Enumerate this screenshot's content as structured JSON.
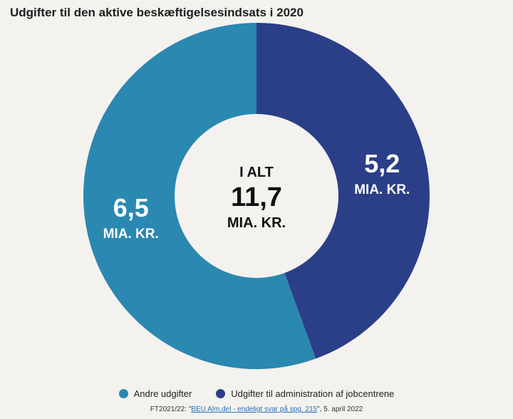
{
  "header": {
    "title": "Udgifter til den aktive beskæftigelsesindsats i 2020"
  },
  "center": {
    "line1": "I ALT",
    "value": "11,7",
    "unit": "MIA. KR."
  },
  "legend": {
    "items": [
      {
        "label": "Andre udgifter",
        "color": "#2a88b1"
      },
      {
        "label": "Udgifter til administration af jobcentrene",
        "color": "#2b3f88"
      }
    ]
  },
  "source": {
    "prefix": "FT2021/22: \"",
    "link": "BEU Alm.del - endeligt svar på spg. 215",
    "suffix": "\", 5. april 2022"
  },
  "chart_data": {
    "type": "pie",
    "subtype": "donut",
    "title": "Udgifter til den aktive beskæftigelsesindsats i 2020",
    "total": 11.7,
    "total_label": "11,7",
    "unit": "MIA. KR.",
    "slices": [
      {
        "name": "Udgifter til administration af jobcentrene",
        "value": 5.2,
        "label": "5,2",
        "color": "#2b3f88"
      },
      {
        "name": "Andre udgifter",
        "value": 6.5,
        "label": "6,5",
        "color": "#2a88b1"
      }
    ],
    "legend_position": "bottom"
  }
}
